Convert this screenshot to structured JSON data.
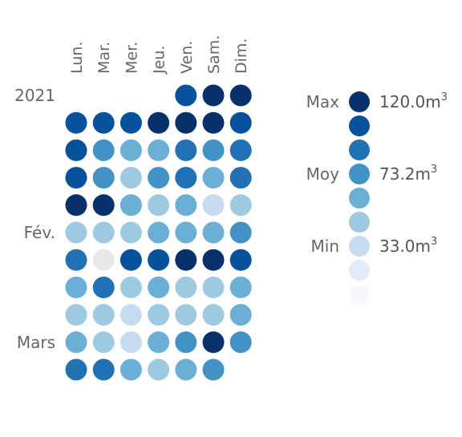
{
  "chart_data": {
    "type": "heatmap",
    "title": "",
    "unit": "m",
    "unit_exponent": "3",
    "days": [
      "Lun.",
      "Mar.",
      "Mer.",
      "Jeu.",
      "Ven.",
      "Sam.",
      "Dim."
    ],
    "row_labels": [
      {
        "row": 0,
        "label": "2021"
      },
      {
        "row": 5,
        "label": "Fév."
      },
      {
        "row": 9,
        "label": "Mars"
      }
    ],
    "color_scale": [
      "#f5f8fd",
      "#e0ebf7",
      "#c6dbef",
      "#9ecae1",
      "#6baed6",
      "#4292c6",
      "#2171b5",
      "#08519c",
      "#08306b"
    ],
    "missing_color": "#e8e8e8",
    "weeks": [
      [
        null,
        null,
        null,
        null,
        8,
        9,
        9
      ],
      [
        8,
        8,
        8,
        9,
        9,
        9,
        8
      ],
      [
        8,
        6,
        5,
        5,
        7,
        6,
        7
      ],
      [
        8,
        6,
        4,
        6,
        7,
        5,
        7
      ],
      [
        9,
        9,
        5,
        4,
        5,
        3,
        4
      ],
      [
        4,
        4,
        4,
        5,
        5,
        5,
        6
      ],
      [
        7,
        "missing",
        8,
        8,
        9,
        9,
        8
      ],
      [
        5,
        7,
        4,
        5,
        4,
        4,
        5
      ],
      [
        4,
        4,
        3,
        4,
        4,
        4,
        5
      ],
      [
        5,
        4,
        3,
        5,
        6,
        9,
        6
      ],
      [
        7,
        7,
        5,
        4,
        5,
        6,
        null
      ]
    ],
    "legend": {
      "labels": [
        {
          "name": "Max",
          "value": "120.0",
          "step": 0
        },
        {
          "name": "Moy",
          "value": "73.2",
          "step": 3
        },
        {
          "name": "Min",
          "value": "33.0",
          "step": 6
        }
      ],
      "steps": [
        9,
        8,
        7,
        6,
        5,
        4,
        3,
        2,
        1
      ]
    }
  }
}
